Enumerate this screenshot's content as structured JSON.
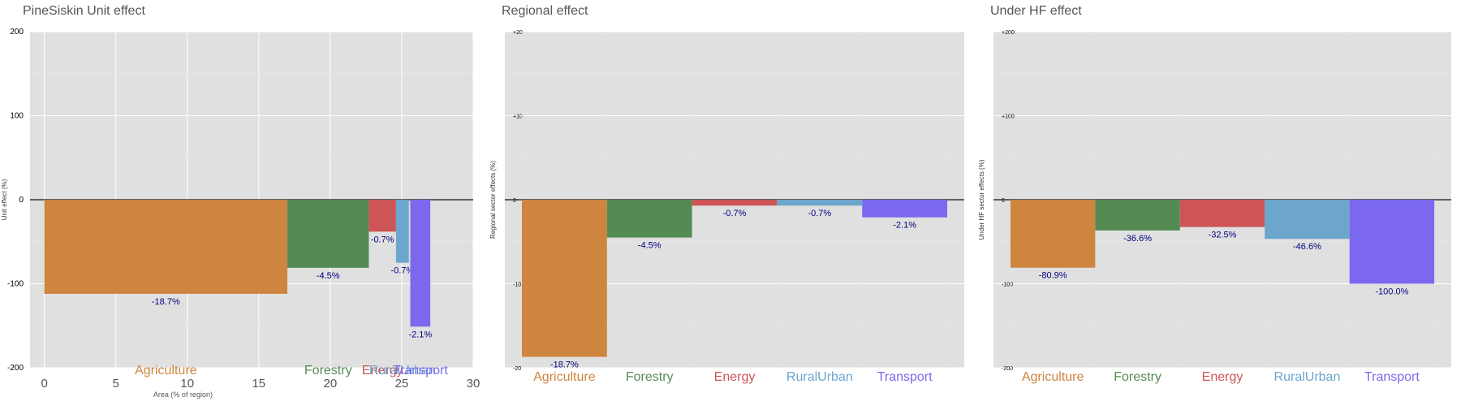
{
  "colors": {
    "Agriculture": "#cd853f",
    "Forestry": "#548b54",
    "Energy": "#cd5555",
    "RuralUrban": "#6ca6cd",
    "Transport": "#7b68ee",
    "panel_bg": "#e0e0e0",
    "label_text": "#000080",
    "title_text": "#555555"
  },
  "chart_data": [
    {
      "type": "bar",
      "variant": "variable-width",
      "title": "PineSiskin Unit effect",
      "xlabel": "Area (% of region)",
      "ylabel": "Unit effect (%)",
      "xlim": [
        -1,
        30
      ],
      "ylim": [
        -200,
        200
      ],
      "xticks": [
        "0",
        "5",
        "10",
        "15",
        "20",
        "25",
        "30"
      ],
      "yticks": [
        "-200",
        "-100",
        "0",
        "100",
        "200"
      ],
      "grid": true,
      "bars": [
        {
          "category": "Agriculture",
          "x_start": 0,
          "x_end": 17,
          "value": -112,
          "label": "-18.7%"
        },
        {
          "category": "Forestry",
          "x_start": 17,
          "x_end": 22.7,
          "value": -81,
          "label": "-4.5%"
        },
        {
          "category": "Energy",
          "x_start": 22.7,
          "x_end": 24.6,
          "value": -38,
          "label": "-0.7%"
        },
        {
          "category": "RuralUrban",
          "x_start": 24.6,
          "x_end": 25.5,
          "value": -75,
          "label": "-0.7%"
        },
        {
          "category": "Transport",
          "x_start": 25.6,
          "x_end": 27.0,
          "value": -151,
          "label": "-2.1%"
        }
      ]
    },
    {
      "type": "bar",
      "title": "Regional effect",
      "xlabel": "",
      "ylabel": "Regional sector effects (%)",
      "ylim": [
        -20,
        20
      ],
      "yticks": [
        "-20",
        "-10",
        "0",
        "+10",
        "+20"
      ],
      "grid": true,
      "categories": [
        "Agriculture",
        "Forestry",
        "Energy",
        "RuralUrban",
        "Transport"
      ],
      "values": [
        -18.7,
        -4.5,
        -0.7,
        -0.7,
        -2.1
      ],
      "labels": [
        "-18.7%",
        "-4.5%",
        "-0.7%",
        "-0.7%",
        "-2.1%"
      ]
    },
    {
      "type": "bar",
      "title": "Under HF effect",
      "xlabel": "",
      "ylabel": "Under HF sector effects (%)",
      "ylim": [
        -200,
        200
      ],
      "yticks": [
        "-200",
        "-100",
        "0",
        "+100",
        "+200"
      ],
      "grid": true,
      "categories": [
        "Agriculture",
        "Forestry",
        "Energy",
        "RuralUrban",
        "Transport"
      ],
      "values": [
        -80.9,
        -36.6,
        -32.5,
        -46.6,
        -100.0
      ],
      "labels": [
        "-80.9%",
        "-36.6%",
        "-32.5%",
        "-46.6%",
        "-100.0%"
      ]
    }
  ]
}
